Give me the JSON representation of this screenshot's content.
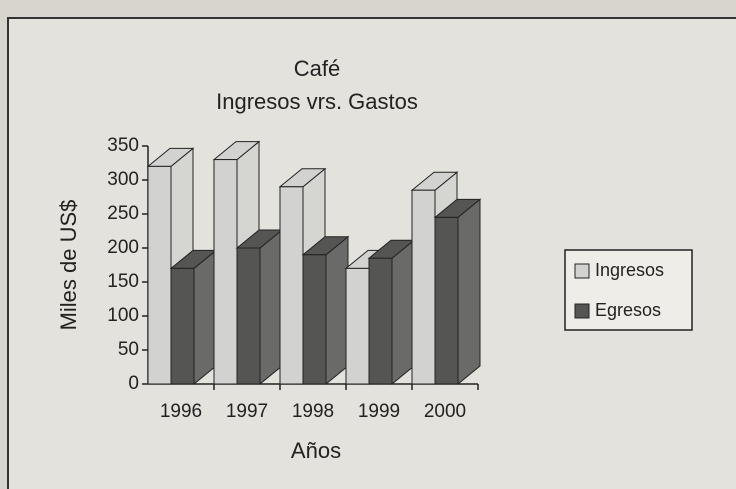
{
  "chart_data": {
    "type": "bar3d",
    "title": "Café",
    "subtitle": "Ingresos vrs. Gastos",
    "y_label": "Miles de US$",
    "x_label": "Años",
    "categories": [
      "1996",
      "1997",
      "1998",
      "1999",
      "2000"
    ],
    "series": [
      {
        "name": "Ingresos",
        "color": "#d2d2d0",
        "values": [
          320,
          330,
          290,
          170,
          285
        ]
      },
      {
        "name": "Egresos",
        "color": "#555553",
        "values": [
          170,
          200,
          190,
          185,
          245
        ]
      }
    ],
    "ylim": [
      0,
      350
    ],
    "yticks": [
      0,
      50,
      100,
      150,
      200,
      250,
      300,
      350
    ],
    "legend": "right"
  }
}
